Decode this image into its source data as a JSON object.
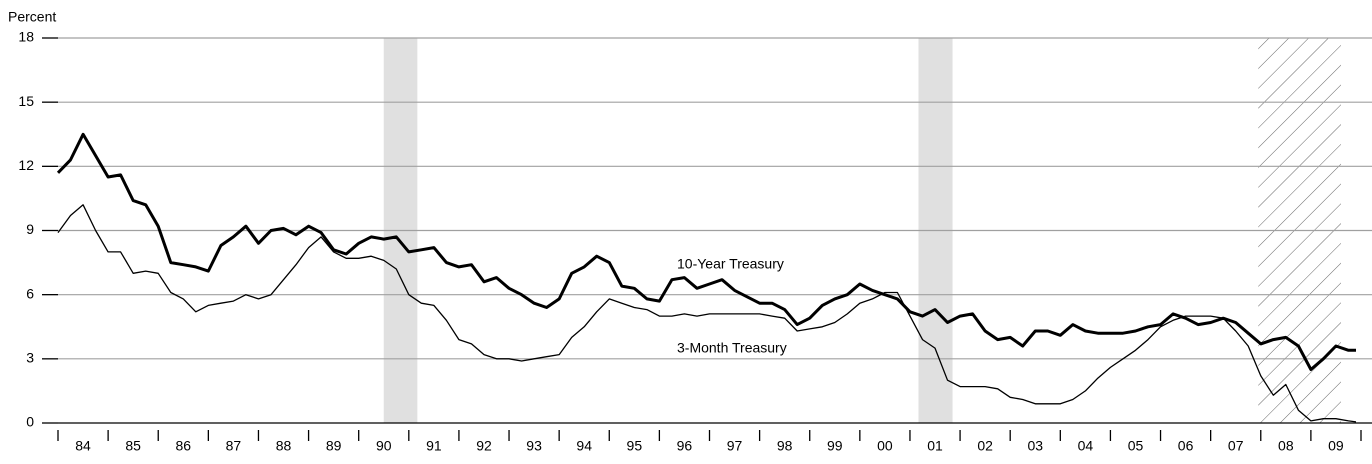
{
  "chart_data": {
    "type": "line",
    "y_axis_label": "Percent",
    "x": [
      1984,
      1984.25,
      1984.5,
      1984.75,
      1985,
      1985.25,
      1985.5,
      1985.75,
      1986,
      1986.25,
      1986.5,
      1986.75,
      1987,
      1987.25,
      1987.5,
      1987.75,
      1988,
      1988.25,
      1988.5,
      1988.75,
      1989,
      1989.25,
      1989.5,
      1989.75,
      1990,
      1990.25,
      1990.5,
      1990.75,
      1991,
      1991.25,
      1991.5,
      1991.75,
      1992,
      1992.25,
      1992.5,
      1992.75,
      1993,
      1993.25,
      1993.5,
      1993.75,
      1994,
      1994.25,
      1994.5,
      1994.75,
      1995,
      1995.25,
      1995.5,
      1995.75,
      1996,
      1996.25,
      1996.5,
      1996.75,
      1997,
      1997.25,
      1997.5,
      1997.75,
      1998,
      1998.25,
      1998.5,
      1998.75,
      1999,
      1999.25,
      1999.5,
      1999.75,
      2000,
      2000.25,
      2000.5,
      2000.75,
      2001,
      2001.25,
      2001.5,
      2001.75,
      2002,
      2002.25,
      2002.5,
      2002.75,
      2003,
      2003.25,
      2003.5,
      2003.75,
      2004,
      2004.25,
      2004.5,
      2004.75,
      2005,
      2005.25,
      2005.5,
      2005.75,
      2006,
      2006.25,
      2006.5,
      2006.75,
      2007,
      2007.25,
      2007.5,
      2007.75,
      2008,
      2008.25,
      2008.5,
      2008.75,
      2009,
      2009.25,
      2009.5,
      2009.75,
      2009.9
    ],
    "series": [
      {
        "name": "10-Year Treasury",
        "color": "#000000",
        "width": 3,
        "values": [
          11.7,
          12.3,
          13.5,
          12.5,
          11.5,
          11.6,
          10.4,
          10.2,
          9.2,
          7.5,
          7.4,
          7.3,
          7.1,
          8.3,
          8.7,
          9.2,
          8.4,
          9.0,
          9.1,
          8.8,
          9.2,
          8.9,
          8.1,
          7.9,
          8.4,
          8.7,
          8.6,
          8.7,
          8.0,
          8.1,
          8.2,
          7.5,
          7.3,
          7.4,
          6.6,
          6.8,
          6.3,
          6.0,
          5.6,
          5.4,
          5.8,
          7.0,
          7.3,
          7.8,
          7.5,
          6.4,
          6.3,
          5.8,
          5.7,
          6.7,
          6.8,
          6.3,
          6.5,
          6.7,
          6.2,
          5.9,
          5.6,
          5.6,
          5.3,
          4.6,
          4.9,
          5.5,
          5.8,
          6.0,
          6.5,
          6.2,
          6.0,
          5.8,
          5.2,
          5.0,
          5.3,
          4.7,
          5.0,
          5.1,
          4.3,
          3.9,
          4.0,
          3.6,
          4.3,
          4.3,
          4.1,
          4.6,
          4.3,
          4.2,
          4.2,
          4.2,
          4.3,
          4.5,
          4.6,
          5.1,
          4.9,
          4.6,
          4.7,
          4.9,
          4.7,
          4.2,
          3.7,
          3.9,
          4.0,
          3.6,
          2.5,
          3.0,
          3.6,
          3.4,
          3.4
        ]
      },
      {
        "name": "3-Month Treasury",
        "color": "#000000",
        "width": 1.3,
        "values": [
          8.9,
          9.7,
          10.2,
          9.0,
          8.0,
          8.0,
          7.0,
          7.1,
          7.0,
          6.1,
          5.8,
          5.2,
          5.5,
          5.6,
          5.7,
          6.0,
          5.8,
          6.0,
          6.7,
          7.4,
          8.2,
          8.7,
          8.0,
          7.7,
          7.7,
          7.8,
          7.6,
          7.2,
          6.0,
          5.6,
          5.5,
          4.8,
          3.9,
          3.7,
          3.2,
          3.0,
          3.0,
          2.9,
          3.0,
          3.1,
          3.2,
          4.0,
          4.5,
          5.2,
          5.8,
          5.6,
          5.4,
          5.3,
          5.0,
          5.0,
          5.1,
          5.0,
          5.1,
          5.1,
          5.1,
          5.1,
          5.1,
          5.0,
          4.9,
          4.3,
          4.4,
          4.5,
          4.7,
          5.1,
          5.6,
          5.8,
          6.1,
          6.1,
          5.0,
          3.9,
          3.5,
          2.0,
          1.7,
          1.7,
          1.7,
          1.6,
          1.2,
          1.1,
          0.9,
          0.9,
          0.9,
          1.1,
          1.5,
          2.1,
          2.6,
          3.0,
          3.4,
          3.9,
          4.5,
          4.8,
          5.0,
          5.0,
          5.0,
          4.9,
          4.3,
          3.6,
          2.2,
          1.3,
          1.8,
          0.6,
          0.1,
          0.2,
          0.2,
          0.1,
          0.05
        ]
      }
    ],
    "xlim": [
      1984,
      2010
    ],
    "ylim": [
      0,
      18
    ],
    "yticks": [
      0,
      3,
      6,
      9,
      12,
      15,
      18
    ],
    "xticks": [
      {
        "value": 1984,
        "label": "84"
      },
      {
        "value": 1985,
        "label": "85"
      },
      {
        "value": 1986,
        "label": "86"
      },
      {
        "value": 1987,
        "label": "87"
      },
      {
        "value": 1988,
        "label": "88"
      },
      {
        "value": 1989,
        "label": "89"
      },
      {
        "value": 1990,
        "label": "90"
      },
      {
        "value": 1991,
        "label": "91"
      },
      {
        "value": 1992,
        "label": "92"
      },
      {
        "value": 1993,
        "label": "93"
      },
      {
        "value": 1994,
        "label": "94"
      },
      {
        "value": 1995,
        "label": "95"
      },
      {
        "value": 1996,
        "label": "96"
      },
      {
        "value": 1997,
        "label": "97"
      },
      {
        "value": 1998,
        "label": "98"
      },
      {
        "value": 1999,
        "label": "99"
      },
      {
        "value": 2000,
        "label": "00"
      },
      {
        "value": 2001,
        "label": "01"
      },
      {
        "value": 2002,
        "label": "02"
      },
      {
        "value": 2003,
        "label": "03"
      },
      {
        "value": 2004,
        "label": "04"
      },
      {
        "value": 2005,
        "label": "05"
      },
      {
        "value": 2006,
        "label": "06"
      },
      {
        "value": 2007,
        "label": "07"
      },
      {
        "value": 2008,
        "label": "08"
      },
      {
        "value": 2009,
        "label": "09"
      }
    ],
    "shaded_periods": [
      [
        1990.5,
        1991.17
      ],
      [
        2001.17,
        2001.85
      ]
    ],
    "hatched_periods": [
      [
        2007.95,
        2009.6
      ]
    ],
    "grid": true
  }
}
